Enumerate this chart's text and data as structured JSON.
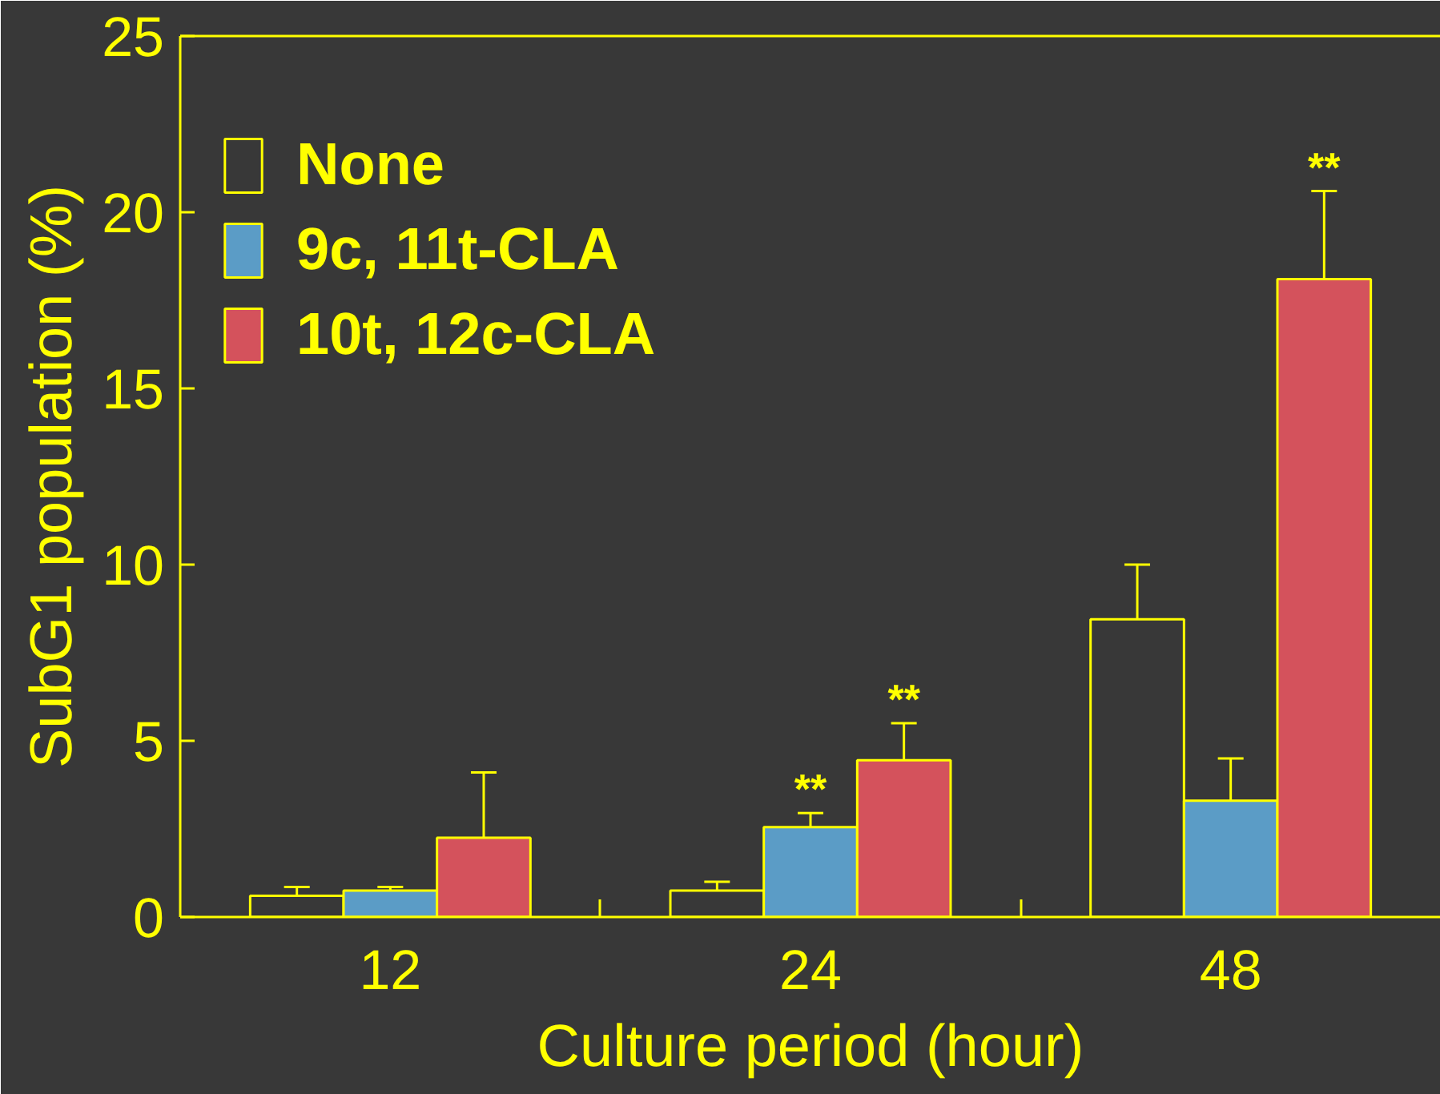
{
  "chart_data": {
    "type": "bar",
    "xlabel": "Culture period (hour)",
    "ylabel": "SubG1 population (%)",
    "categories": [
      "12",
      "24",
      "48"
    ],
    "series": [
      {
        "name": "None",
        "color": "#383838",
        "values": [
          0.6,
          0.75,
          8.45
        ],
        "errors": [
          [
            0.6,
            0.85
          ],
          [
            0.75,
            1.0
          ],
          [
            8.45,
            10.0
          ]
        ]
      },
      {
        "name": "9c, 11t-CLA",
        "color": "#5b9cc6",
        "values": [
          0.75,
          2.55,
          3.3
        ],
        "errors": [
          [
            0.75,
            0.85
          ],
          [
            2.55,
            2.95
          ],
          [
            3.3,
            4.5
          ]
        ],
        "value_labels": [
          null,
          "**",
          null
        ]
      },
      {
        "name": "10t, 12c-CLA",
        "color": "#d4525c",
        "values": [
          2.25,
          4.45,
          18.1
        ],
        "errors": [
          [
            2.25,
            4.1
          ],
          [
            4.45,
            5.5
          ],
          [
            18.1,
            20.6
          ]
        ],
        "value_labels": [
          null,
          "**",
          "**"
        ]
      }
    ],
    "ylim": [
      0,
      25
    ],
    "yticks": [
      0,
      5,
      10,
      15,
      20,
      25
    ],
    "grid": false,
    "legend": "top left"
  }
}
